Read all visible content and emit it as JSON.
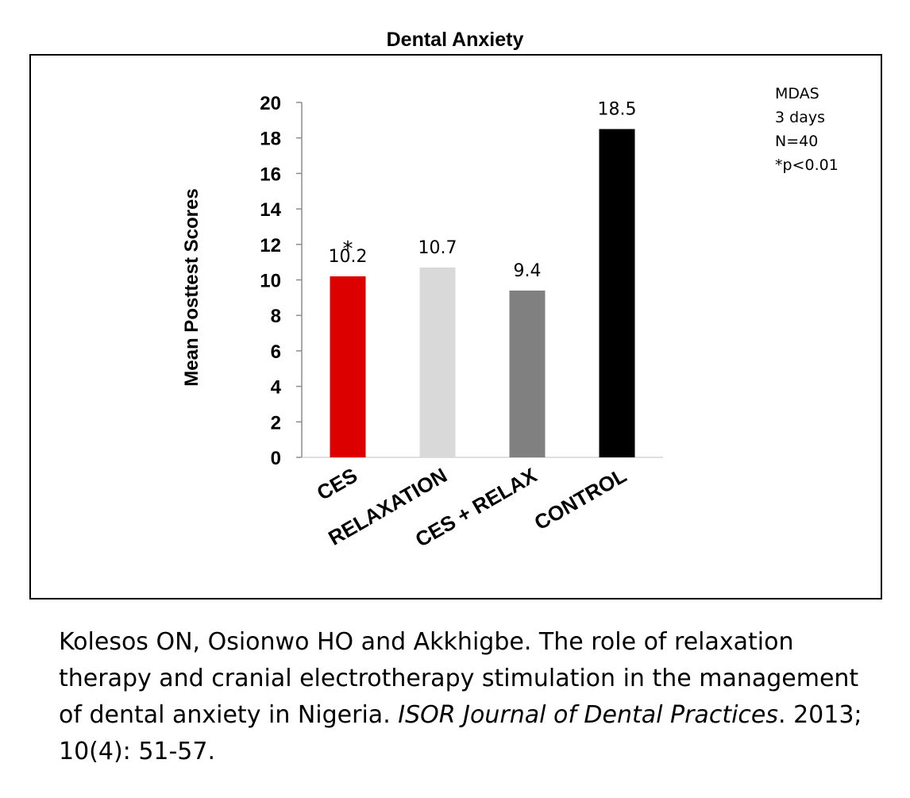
{
  "chart_data": {
    "type": "bar",
    "title": "Dental Anxiety",
    "ylabel": "Mean Posttest Scores",
    "xlabel": "",
    "ylim": [
      0,
      20
    ],
    "yticks": [
      "0",
      "2",
      "4",
      "6",
      "8",
      "10",
      "12",
      "14",
      "16",
      "18",
      "20"
    ],
    "categories": [
      "CES",
      "RELAXATION",
      "CES + RELAX",
      "CONTROL"
    ],
    "values": [
      10.2,
      10.7,
      9.4,
      18.5
    ],
    "data_labels": [
      "10.2",
      "10.7",
      "9.4",
      "18.5"
    ],
    "bar_colors": [
      "#dd0000",
      "#d9d9d9",
      "#808080",
      "#000000"
    ],
    "significance_marker": {
      "category": "CES",
      "symbol": "*"
    },
    "annotations": [
      "MDAS",
      "3 days",
      "N=40",
      "*p<0.01"
    ],
    "grid": false,
    "legend": "none"
  },
  "citation": {
    "authors_title": "Kolesos ON, Osionwo HO and Akkhigbe.  The role of relaxation therapy  and cranial electrotherapy stimulation in the management of dental anxiety in Nigeria. ",
    "journal": "ISOR Journal of Dental Practices",
    "details": ". 2013; 10(4): 51-57."
  }
}
